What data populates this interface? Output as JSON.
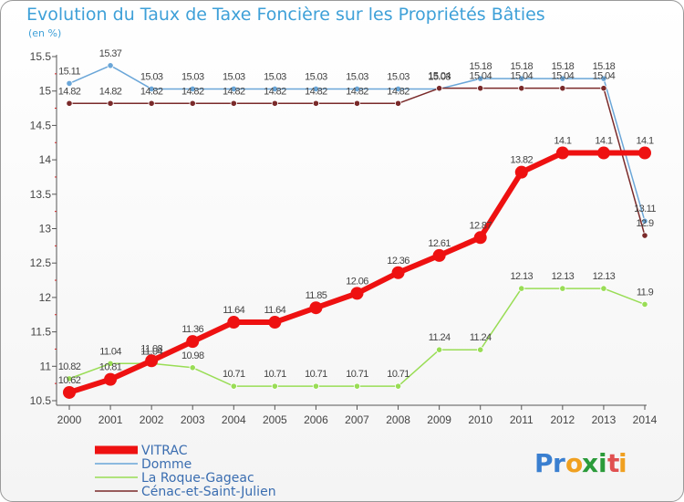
{
  "chart_data": {
    "type": "line",
    "title": "Evolution du Taux de Taxe Foncière sur les Propriétés Bâties",
    "subtitle": "(en %)",
    "xlabel": "",
    "ylabel": "",
    "x": [
      "2000",
      "2001",
      "2002",
      "2003",
      "2004",
      "2005",
      "2006",
      "2007",
      "2008",
      "2009",
      "2010",
      "2011",
      "2012",
      "2013",
      "2014"
    ],
    "ylim": [
      10.5,
      15.5
    ],
    "yticks": [
      "10.5",
      "11",
      "11.5",
      "12",
      "12.5",
      "13",
      "13.5",
      "14",
      "14.5",
      "15",
      "15.5"
    ],
    "grid": false,
    "legend_position": "bottom-left",
    "series": [
      {
        "name": "VITRAC",
        "color": "#ee1111",
        "values": [
          10.62,
          10.81,
          11.08,
          11.36,
          11.64,
          11.64,
          11.85,
          12.06,
          12.36,
          12.61,
          12.87,
          13.82,
          14.1,
          14.1,
          14.1
        ],
        "labels": [
          "10.62",
          "10.81",
          "11.08",
          "11.36",
          "11.64",
          "11.64",
          "11.85",
          "12.06",
          "12.36",
          "12.61",
          "12.87",
          "13.82",
          "14.1",
          "14.1",
          "14.1"
        ]
      },
      {
        "name": "Domme",
        "color": "#6aa6d8",
        "values": [
          15.11,
          15.37,
          15.03,
          15.03,
          15.03,
          15.03,
          15.03,
          15.03,
          15.03,
          15.03,
          15.18,
          15.18,
          15.18,
          15.18,
          13.11
        ],
        "labels": [
          "15.11",
          "15.37",
          "15.03",
          "15.03",
          "15.03",
          "15.03",
          "15.03",
          "15.03",
          "15.03",
          "15.03",
          "15.18",
          "15.18",
          "15.18",
          "15.18",
          "13.11"
        ]
      },
      {
        "name": "La Roque-Gageac",
        "color": "#99dd55",
        "values": [
          10.82,
          11.04,
          11.04,
          10.98,
          10.71,
          10.71,
          10.71,
          10.71,
          10.71,
          11.24,
          11.24,
          12.13,
          12.13,
          12.13,
          11.9
        ],
        "labels": [
          "10.82",
          "11.04",
          "11.04",
          "10.98",
          "10.71",
          "10.71",
          "10.71",
          "10.71",
          "10.71",
          "11.24",
          "11.24",
          "12.13",
          "12.13",
          "12.13",
          "11.9"
        ]
      },
      {
        "name": "Cénac-et-Saint-Julien",
        "color": "#7a2a2a",
        "values": [
          14.82,
          14.82,
          14.82,
          14.82,
          14.82,
          14.82,
          14.82,
          14.82,
          14.82,
          15.04,
          15.04,
          15.04,
          15.04,
          15.04,
          12.9
        ],
        "labels": [
          "14.82",
          "14.82",
          "14.82",
          "14.82",
          "14.82",
          "14.82",
          "14.82",
          "14.82",
          "14.82",
          "15.04",
          "15.04",
          "15.04",
          "15.04",
          "15.04",
          "12.9"
        ]
      }
    ]
  },
  "brand": {
    "letters": [
      "P",
      "r",
      "o",
      "x",
      "i",
      "t",
      "i"
    ],
    "colors": [
      "#3a7fd0",
      "#3a7fd0",
      "#f0a020",
      "#2b9b3a",
      "#2b9b3a",
      "#e05050",
      "#f0a020"
    ]
  }
}
